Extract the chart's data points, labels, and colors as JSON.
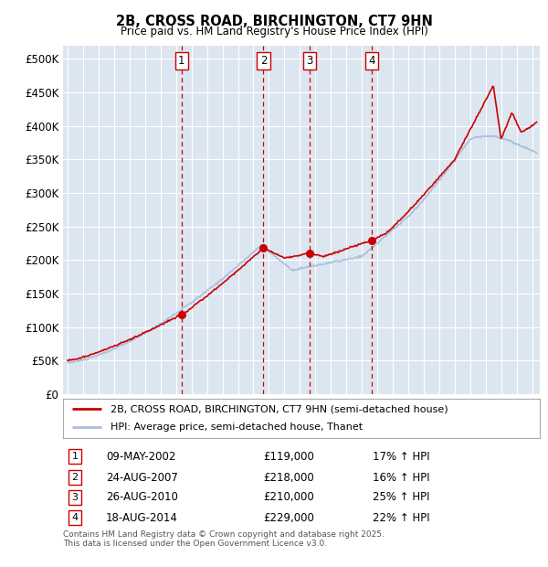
{
  "title": "2B, CROSS ROAD, BIRCHINGTON, CT7 9HN",
  "subtitle": "Price paid vs. HM Land Registry's House Price Index (HPI)",
  "ylabel_ticks": [
    "£0",
    "£50K",
    "£100K",
    "£150K",
    "£200K",
    "£250K",
    "£300K",
    "£350K",
    "£400K",
    "£450K",
    "£500K"
  ],
  "ytick_values": [
    0,
    50000,
    100000,
    150000,
    200000,
    250000,
    300000,
    350000,
    400000,
    450000,
    500000
  ],
  "ylim": [
    0,
    520000
  ],
  "xlim_start": 1994.7,
  "xlim_end": 2025.5,
  "background_color": "#dce6f1",
  "plot_bg_color": "#dce6f1",
  "grid_color": "#ffffff",
  "hpi_color": "#aabfdd",
  "price_color": "#cc0000",
  "sale_marker_color": "#cc0000",
  "transaction_line_color": "#cc0000",
  "transactions": [
    {
      "id": 1,
      "year": 2002.36,
      "price": 119000,
      "label": "1",
      "date": "09-MAY-2002",
      "pct": "17%",
      "direction": "↑"
    },
    {
      "id": 2,
      "year": 2007.65,
      "price": 218000,
      "label": "2",
      "date": "24-AUG-2007",
      "pct": "16%",
      "direction": "↑"
    },
    {
      "id": 3,
      "year": 2010.65,
      "price": 210000,
      "label": "3",
      "date": "26-AUG-2010",
      "pct": "25%",
      "direction": "↑"
    },
    {
      "id": 4,
      "year": 2014.63,
      "price": 229000,
      "label": "4",
      "date": "18-AUG-2014",
      "pct": "22%",
      "direction": "↑"
    }
  ],
  "legend_property_label": "2B, CROSS ROAD, BIRCHINGTON, CT7 9HN (semi-detached house)",
  "legend_hpi_label": "HPI: Average price, semi-detached house, Thanet",
  "footer_line1": "Contains HM Land Registry data © Crown copyright and database right 2025.",
  "footer_line2": "This data is licensed under the Open Government Licence v3.0."
}
